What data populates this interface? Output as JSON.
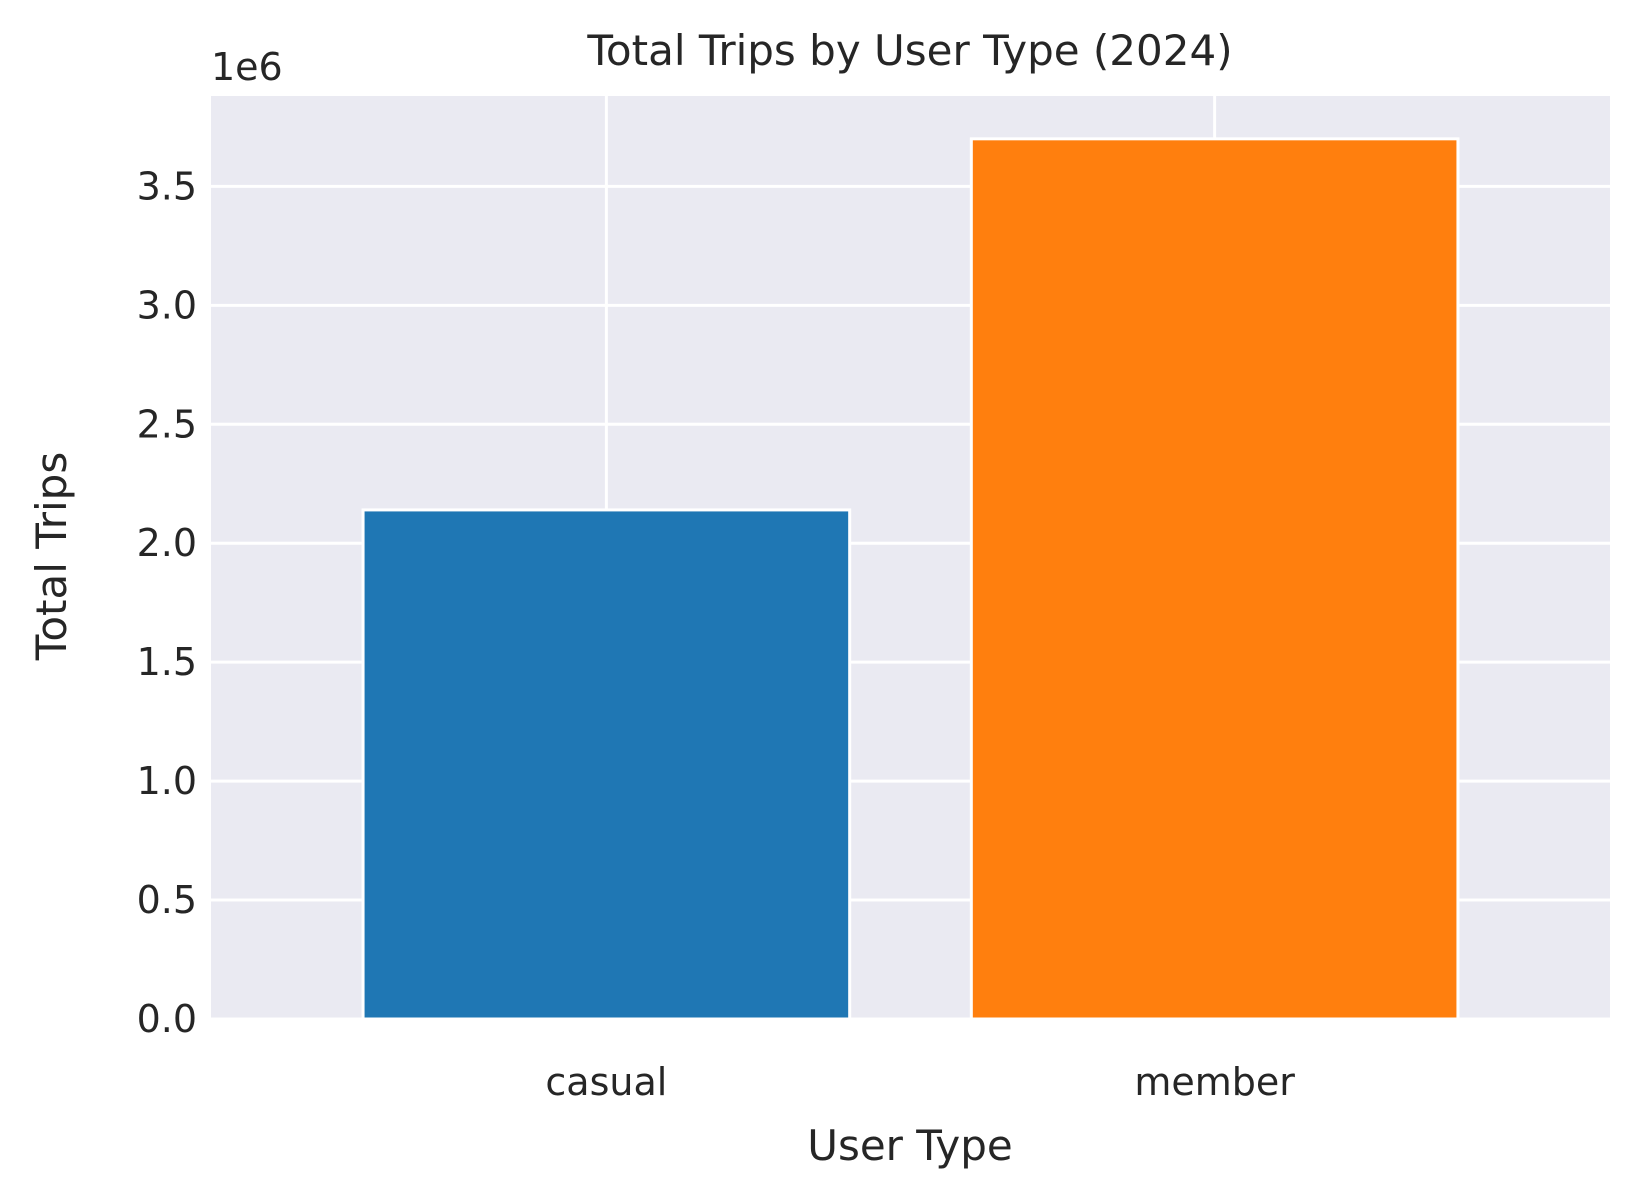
{
  "chart_data": {
    "type": "bar",
    "title": "Total Trips by User Type (2024)",
    "xlabel": "User Type",
    "ylabel": "Total Trips",
    "offset_text": "1e6",
    "scale": 1000000,
    "categories": [
      "casual",
      "member"
    ],
    "values": [
      2140000,
      3700000
    ],
    "ylim": [
      0,
      3880000
    ],
    "yticks": [
      0,
      500000,
      1000000,
      1500000,
      2000000,
      2500000,
      3000000,
      3500000
    ],
    "ytick_labels": [
      "0.0",
      "0.5",
      "1.0",
      "1.5",
      "2.0",
      "2.5",
      "3.0",
      "3.5"
    ],
    "colors": [
      "#1f77b4",
      "#ff7f0e"
    ],
    "background": "#eaeaf2",
    "grid": true,
    "legend": false
  }
}
